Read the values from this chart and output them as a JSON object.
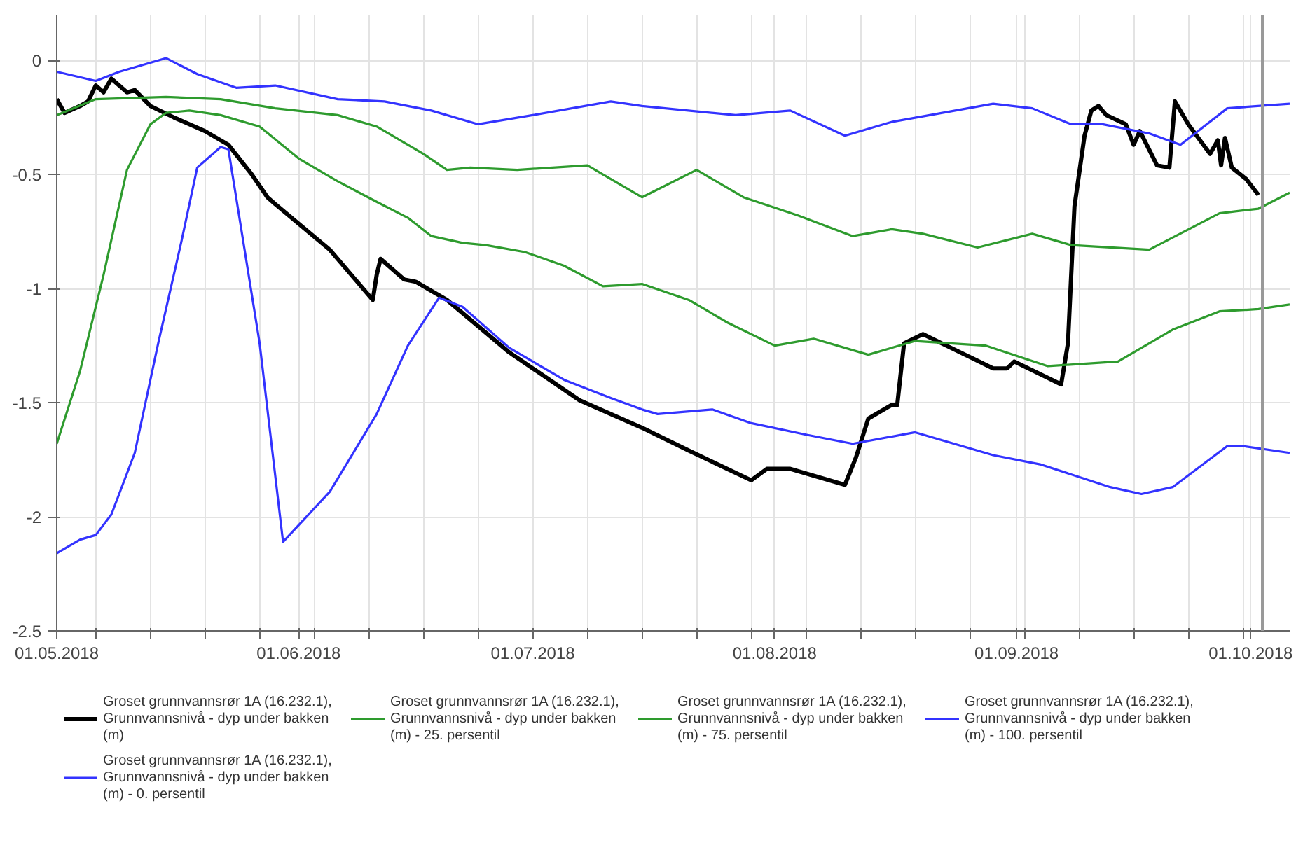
{
  "chart_data": {
    "type": "line",
    "xlim": [
      "2018-05-01",
      "2018-10-06"
    ],
    "xticks": [
      {
        "value": "2018-05-01",
        "label": "01.05.2018"
      },
      {
        "value": "2018-05-06",
        "label": null
      },
      {
        "value": "2018-05-13",
        "label": null
      },
      {
        "value": "2018-05-20",
        "label": null
      },
      {
        "value": "2018-05-27",
        "label": null
      },
      {
        "value": "2018-06-01",
        "label": "01.06.2018"
      },
      {
        "value": "2018-06-03",
        "label": null
      },
      {
        "value": "2018-06-10",
        "label": null
      },
      {
        "value": "2018-06-17",
        "label": null
      },
      {
        "value": "2018-06-24",
        "label": null
      },
      {
        "value": "2018-07-01",
        "label": "01.07.2018"
      },
      {
        "value": "2018-07-08",
        "label": null
      },
      {
        "value": "2018-07-15",
        "label": null
      },
      {
        "value": "2018-07-22",
        "label": null
      },
      {
        "value": "2018-07-29",
        "label": null
      },
      {
        "value": "2018-08-01",
        "label": "01.08.2018"
      },
      {
        "value": "2018-08-05",
        "label": null
      },
      {
        "value": "2018-08-12",
        "label": null
      },
      {
        "value": "2018-08-19",
        "label": null
      },
      {
        "value": "2018-08-26",
        "label": null
      },
      {
        "value": "2018-09-01",
        "label": "01.09.2018"
      },
      {
        "value": "2018-09-02",
        "label": null
      },
      {
        "value": "2018-09-09",
        "label": null
      },
      {
        "value": "2018-09-16",
        "label": null
      },
      {
        "value": "2018-09-23",
        "label": null
      },
      {
        "value": "2018-09-30",
        "label": null
      },
      {
        "value": "2018-10-01",
        "label": "01.10.2018"
      }
    ],
    "ylim": [
      -2.5,
      0.2
    ],
    "yticks": [
      0,
      -0.5,
      -1,
      -1.5,
      -2,
      -2.5
    ],
    "grid": true,
    "legend": "bottom",
    "ref_lines": [
      {
        "axis": "x",
        "value": "2018-10-02T12:00",
        "color": "#999999"
      }
    ],
    "series": [
      {
        "name": "Groset grunnvannsrør 1A (16.232.1), Grunnvannsnivå - dyp under bakken (m)",
        "color": "#000000",
        "x": [
          "2018-05-01",
          "2018-05-02",
          "2018-05-04",
          "2018-05-05",
          "2018-05-06",
          "2018-05-07",
          "2018-05-08",
          "2018-05-10",
          "2018-05-11",
          "2018-05-13",
          "2018-05-16",
          "2018-05-20",
          "2018-05-23",
          "2018-05-26",
          "2018-05-28",
          "2018-05-29",
          "2018-06-05",
          "2018-06-10T12:00",
          "2018-06-11T00:00",
          "2018-06-11T12:00",
          "2018-06-14T12:00",
          "2018-06-16",
          "2018-06-20",
          "2018-06-28",
          "2018-07-07",
          "2018-07-15",
          "2018-07-21",
          "2018-07-29",
          "2018-07-31",
          "2018-08-03",
          "2018-08-10",
          "2018-08-11T10:00",
          "2018-08-13",
          "2018-08-16",
          "2018-08-16T17:00",
          "2018-08-17T14:00",
          "2018-08-20",
          "2018-08-23",
          "2018-08-26",
          "2018-08-29",
          "2018-08-30T19:00",
          "2018-08-31T17:00",
          "2018-09-06T17:00",
          "2018-09-07T14:00",
          "2018-09-08T10:00",
          "2018-09-09T17:00",
          "2018-09-10T14:00",
          "2018-09-11T12:00",
          "2018-09-12T12:00",
          "2018-09-15",
          "2018-09-16",
          "2018-09-16T19:00",
          "2018-09-19",
          "2018-09-20T14:00",
          "2018-09-21T07:00",
          "2018-09-23",
          "2018-09-25T19:00",
          "2018-09-26T19:00",
          "2018-09-27T05:00",
          "2018-09-27T17:00",
          "2018-09-28T14:00",
          "2018-09-30T10:00",
          "2018-10-02"
        ],
        "values": [
          -0.17,
          -0.23,
          -0.2,
          -0.18,
          -0.11,
          -0.14,
          -0.08,
          -0.14,
          -0.13,
          -0.2,
          -0.25,
          -0.31,
          -0.37,
          -0.5,
          -0.6,
          -0.63,
          -0.83,
          -1.05,
          -0.94,
          -0.87,
          -0.96,
          -0.97,
          -1.05,
          -1.28,
          -1.49,
          -1.61,
          -1.71,
          -1.84,
          -1.79,
          -1.79,
          -1.86,
          -1.74,
          -1.57,
          -1.51,
          -1.51,
          -1.24,
          -1.2,
          -1.25,
          -1.3,
          -1.35,
          -1.35,
          -1.32,
          -1.42,
          -1.24,
          -0.64,
          -0.33,
          -0.22,
          -0.2,
          -0.24,
          -0.28,
          -0.37,
          -0.31,
          -0.46,
          -0.47,
          -0.18,
          -0.28,
          -0.41,
          -0.35,
          -0.46,
          -0.34,
          -0.47,
          -0.52,
          -0.59
        ]
      },
      {
        "name": "Groset grunnvannsrør 1A (16.232.1), Grunnvannsnivå - dyp under bakken (m) - 25. persentil",
        "color": "#2e9b2e",
        "x": [
          "2018-05-01",
          "2018-05-04",
          "2018-05-07",
          "2018-05-10",
          "2018-05-13",
          "2018-05-15",
          "2018-05-18",
          "2018-05-22",
          "2018-05-27",
          "2018-06-01",
          "2018-06-06",
          "2018-06-11",
          "2018-06-15",
          "2018-06-18",
          "2018-06-22",
          "2018-06-25",
          "2018-06-30",
          "2018-07-05",
          "2018-07-10",
          "2018-07-15",
          "2018-07-21",
          "2018-07-26",
          "2018-08-01",
          "2018-08-06",
          "2018-08-13",
          "2018-08-19",
          "2018-08-28",
          "2018-09-05",
          "2018-09-14",
          "2018-09-21",
          "2018-09-27",
          "2018-10-02",
          "2018-10-06"
        ],
        "values": [
          -1.68,
          -1.36,
          -0.94,
          -0.48,
          -0.28,
          -0.23,
          -0.22,
          -0.24,
          -0.29,
          -0.43,
          -0.53,
          -0.62,
          -0.69,
          -0.77,
          -0.8,
          -0.81,
          -0.84,
          -0.9,
          -0.99,
          -0.98,
          -1.05,
          -1.15,
          -1.25,
          -1.22,
          -1.29,
          -1.23,
          -1.25,
          -1.34,
          -1.32,
          -1.18,
          -1.1,
          -1.09,
          -1.07
        ]
      },
      {
        "name": "Groset grunnvannsrør 1A (16.232.1), Grunnvannsnivå - dyp under bakken (m) - 75. persentil",
        "color": "#2e9b2e",
        "x": [
          "2018-05-01",
          "2018-05-06",
          "2018-05-15",
          "2018-05-22",
          "2018-05-29",
          "2018-06-06",
          "2018-06-11",
          "2018-06-17",
          "2018-06-20",
          "2018-06-23",
          "2018-06-29",
          "2018-07-08",
          "2018-07-15",
          "2018-07-22",
          "2018-07-28",
          "2018-08-04",
          "2018-08-11",
          "2018-08-16",
          "2018-08-20",
          "2018-08-27",
          "2018-09-03",
          "2018-09-08",
          "2018-09-18",
          "2018-09-27",
          "2018-10-02",
          "2018-10-06"
        ],
        "values": [
          -0.24,
          -0.17,
          -0.16,
          -0.17,
          -0.21,
          -0.24,
          -0.29,
          -0.41,
          -0.48,
          -0.47,
          -0.48,
          -0.46,
          -0.6,
          -0.48,
          -0.6,
          -0.68,
          -0.77,
          -0.74,
          -0.76,
          -0.82,
          -0.76,
          -0.81,
          -0.83,
          -0.67,
          -0.65,
          -0.58
        ]
      },
      {
        "name": "Groset grunnvannsrør 1A (16.232.1), Grunnvannsnivå - dyp under bakken (m) - 100. persentil",
        "color": "#3333ff",
        "x": [
          "2018-05-01",
          "2018-05-06",
          "2018-05-09",
          "2018-05-15",
          "2018-05-19",
          "2018-05-24",
          "2018-05-29",
          "2018-06-06",
          "2018-06-12",
          "2018-06-18",
          "2018-06-24",
          "2018-07-01",
          "2018-07-11",
          "2018-07-15",
          "2018-07-27",
          "2018-08-03",
          "2018-08-10",
          "2018-08-16",
          "2018-08-29",
          "2018-09-03",
          "2018-09-08",
          "2018-09-12",
          "2018-09-18",
          "2018-09-22",
          "2018-09-28",
          "2018-10-06"
        ],
        "values": [
          -0.05,
          -0.09,
          -0.05,
          0.01,
          -0.06,
          -0.12,
          -0.11,
          -0.17,
          -0.18,
          -0.22,
          -0.28,
          -0.24,
          -0.18,
          -0.2,
          -0.24,
          -0.22,
          -0.33,
          -0.27,
          -0.19,
          -0.21,
          -0.28,
          -0.28,
          -0.32,
          -0.37,
          -0.21,
          -0.19
        ]
      },
      {
        "name": "Groset grunnvannsrør 1A (16.232.1), Grunnvannsnivå - dyp under bakken (m) - 0. persentil",
        "color": "#3333ff",
        "x": [
          "2018-05-01",
          "2018-05-04",
          "2018-05-06",
          "2018-05-08",
          "2018-05-11",
          "2018-05-14",
          "2018-05-17",
          "2018-05-19",
          "2018-05-22",
          "2018-05-23",
          "2018-05-27",
          "2018-05-30",
          "2018-06-05",
          "2018-06-11",
          "2018-06-15",
          "2018-06-19",
          "2018-06-22",
          "2018-06-28",
          "2018-07-05",
          "2018-07-11",
          "2018-07-15",
          "2018-07-17",
          "2018-07-24",
          "2018-07-29",
          "2018-08-05",
          "2018-08-11",
          "2018-08-19",
          "2018-08-29",
          "2018-09-04",
          "2018-09-13",
          "2018-09-17",
          "2018-09-21",
          "2018-09-28",
          "2018-09-30",
          "2018-10-06"
        ],
        "values": [
          -2.16,
          -2.1,
          -2.08,
          -1.99,
          -1.72,
          -1.24,
          -0.79,
          -0.47,
          -0.38,
          -0.39,
          -1.24,
          -2.11,
          -1.89,
          -1.55,
          -1.25,
          -1.04,
          -1.08,
          -1.26,
          -1.4,
          -1.48,
          -1.53,
          -1.55,
          -1.53,
          -1.59,
          -1.64,
          -1.68,
          -1.63,
          -1.73,
          -1.77,
          -1.87,
          -1.9,
          -1.87,
          -1.69,
          -1.69,
          -1.72
        ]
      }
    ]
  }
}
